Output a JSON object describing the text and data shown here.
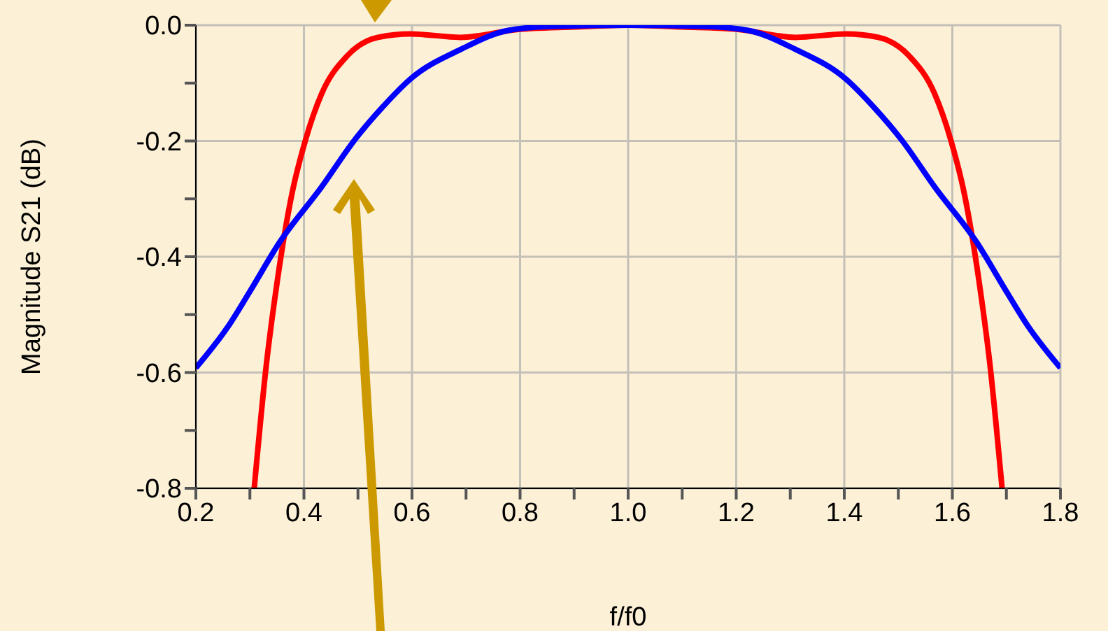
{
  "chart_data": {
    "type": "line",
    "xlabel": "f/f0",
    "ylabel": "Magnitude S21 (dB)",
    "xlim": [
      0.2,
      1.8
    ],
    "ylim": [
      -0.8,
      0
    ],
    "xticks": [
      0.2,
      {
        "value": 0.3,
        "label": null
      },
      0.4,
      {
        "value": 0.5,
        "label": null
      },
      0.6,
      {
        "value": 0.7,
        "label": null
      },
      0.8,
      {
        "value": 0.9,
        "label": null
      },
      {
        "value": 1,
        "label": "1.0"
      },
      {
        "value": 1.1,
        "label": null
      },
      1.2,
      {
        "value": 1.3,
        "label": null
      },
      1.4,
      {
        "value": 1.5,
        "label": null
      },
      1.6,
      {
        "value": 1.7,
        "label": null
      },
      1.8
    ],
    "yticks": [
      -0.8,
      {
        "value": -0.7,
        "label": null
      },
      -0.6,
      {
        "value": -0.5,
        "label": null
      },
      -0.4,
      {
        "value": -0.3,
        "label": null
      },
      -0.2,
      {
        "value": -0.1,
        "label": null
      },
      {
        "value": 0,
        "label": "0.0"
      }
    ],
    "grid": true,
    "marker": "none",
    "line_style": "solid",
    "series": [
      {
        "color": "#ff0000",
        "x": [
          0.308,
          0.33,
          0.351,
          0.377,
          0.403,
          0.433,
          0.48,
          0.537,
          0.597,
          0.69,
          0.8,
          0.9,
          1.0,
          1.1,
          1.2,
          1.31,
          1.403,
          1.463,
          1.52,
          1.567,
          1.597,
          1.623,
          1.649,
          1.67,
          1.692
        ],
        "values": [
          -0.8,
          -0.59,
          -0.44,
          -0.295,
          -0.198,
          -0.118,
          -0.053,
          -0.021,
          -0.015,
          -0.021,
          -0.007,
          -0.003,
          0,
          -0.003,
          -0.007,
          -0.021,
          -0.015,
          -0.021,
          -0.053,
          -0.118,
          -0.198,
          -0.295,
          -0.44,
          -0.59,
          -0.8
        ]
      },
      {
        "color": "#0000ff",
        "x": [
          0.2,
          0.26,
          0.3,
          0.355,
          0.433,
          0.494,
          0.545,
          0.597,
          0.692,
          0.778,
          0.86,
          1.0,
          1.14,
          1.222,
          1.308,
          1.403,
          1.455,
          1.506,
          1.567,
          1.645,
          1.7,
          1.74,
          1.8
        ],
        "values": [
          -0.592,
          -0.52,
          -0.46,
          -0.375,
          -0.279,
          -0.198,
          -0.142,
          -0.093,
          -0.041,
          -0.009,
          -0.002,
          0,
          -0.002,
          -0.009,
          -0.041,
          -0.093,
          -0.142,
          -0.198,
          -0.279,
          -0.375,
          -0.46,
          -0.52,
          -0.592
        ]
      }
    ]
  }
}
